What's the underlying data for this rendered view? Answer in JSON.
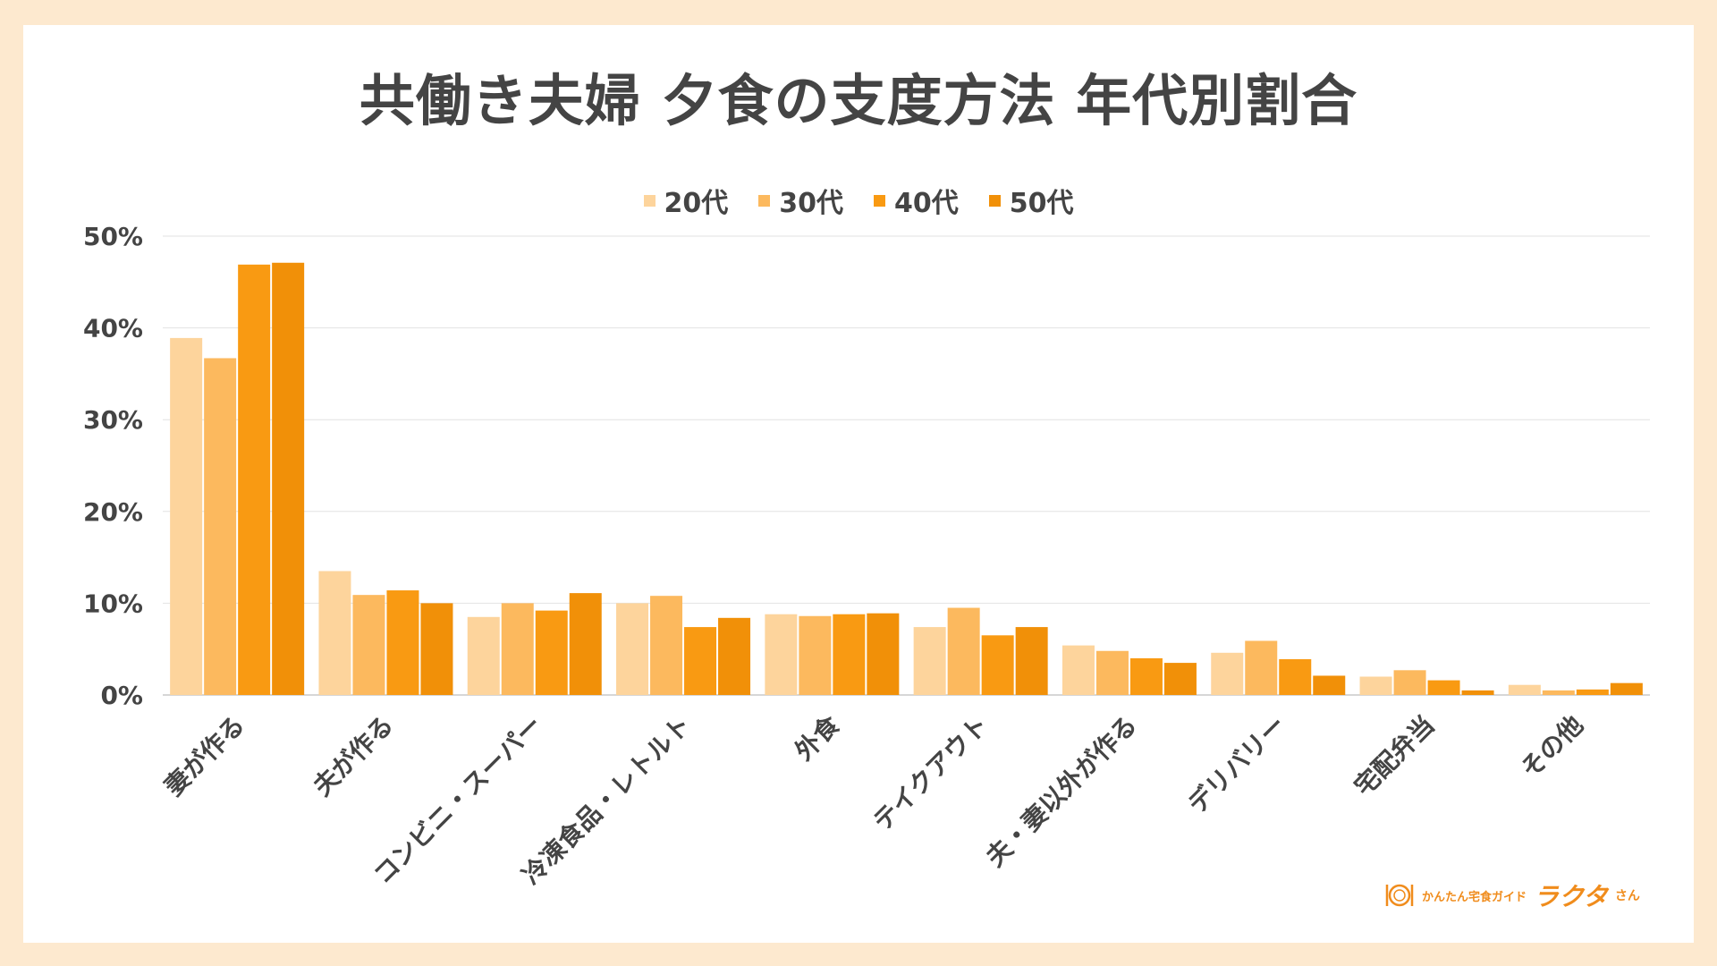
{
  "chart_data": {
    "type": "bar",
    "title": "共働き夫婦 夕食の支度方法 年代別割合",
    "categories": [
      "妻が作る",
      "夫が作る",
      "コンビニ・スーパー",
      "冷凍食品・レトルト",
      "外食",
      "テイクアウト",
      "夫・妻以外が作る",
      "デリバリー",
      "宅配弁当",
      "その他"
    ],
    "series": [
      {
        "name": "20代",
        "color": "#fdd49c",
        "values": [
          38.9,
          13.5,
          8.5,
          10.0,
          8.8,
          7.4,
          5.4,
          4.6,
          2.0,
          1.1
        ]
      },
      {
        "name": "30代",
        "color": "#fcb95e",
        "values": [
          36.7,
          10.9,
          10.0,
          10.8,
          8.6,
          9.5,
          4.8,
          5.9,
          2.7,
          0.5
        ]
      },
      {
        "name": "40代",
        "color": "#f99a12",
        "values": [
          46.9,
          11.4,
          9.2,
          7.4,
          8.8,
          6.5,
          4.0,
          3.9,
          1.6,
          0.6
        ]
      },
      {
        "name": "50代",
        "color": "#f19008",
        "values": [
          47.1,
          10.0,
          11.1,
          8.4,
          8.9,
          7.4,
          3.5,
          2.1,
          0.5,
          1.3
        ]
      }
    ],
    "yticks": [
      "0%",
      "10%",
      "20%",
      "30%",
      "40%",
      "50%"
    ],
    "ylim": [
      0,
      50
    ],
    "grid": true,
    "legend": "top-center"
  },
  "logo": {
    "subtitle": "かんたん宅食ガイド",
    "name": "ラクタ",
    "suffix": "さん"
  }
}
